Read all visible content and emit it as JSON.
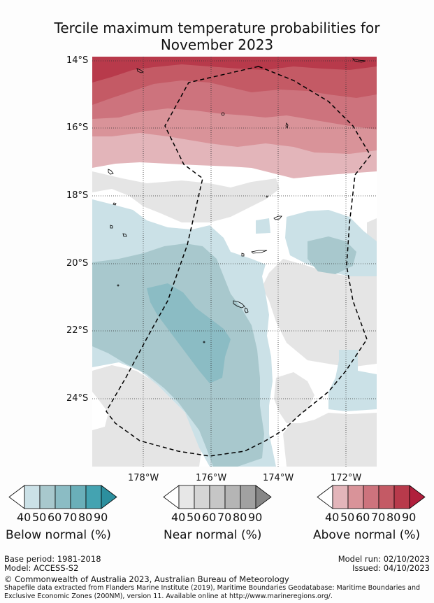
{
  "title_line1": "Tercile maximum temperature probabilities for",
  "title_line2": "November 2023",
  "axes": {
    "lat_labels": [
      "14°S",
      "16°S",
      "18°S",
      "20°S",
      "22°S",
      "24°S"
    ],
    "lon_labels": [
      "178°W",
      "176°W",
      "174°W",
      "172°W"
    ]
  },
  "legends": {
    "below": {
      "title": "Below normal (%)",
      "ticks": [
        "40",
        "50",
        "60",
        "70",
        "80",
        "90"
      ],
      "colors": [
        "#ffffff",
        "#cbe1e7",
        "#a8c8cd",
        "#8bbcc4",
        "#6aafb9",
        "#44a3b1",
        "#2c8f9e"
      ]
    },
    "near": {
      "title": "Near normal (%)",
      "ticks": [
        "40",
        "50",
        "60",
        "70",
        "80",
        "90"
      ],
      "colors": [
        "#ffffff",
        "#e7e7e7",
        "#d5d5d5",
        "#c6c6c6",
        "#b5b5b5",
        "#a1a1a1",
        "#868686"
      ]
    },
    "above": {
      "title": "Above normal (%)",
      "ticks": [
        "40",
        "50",
        "60",
        "70",
        "80",
        "90"
      ],
      "colors": [
        "#ffffff",
        "#e3b5ba",
        "#d99399",
        "#cd737d",
        "#c45a65",
        "#b83a4b",
        "#b01f3c"
      ]
    }
  },
  "footer": {
    "base_period": "Base period: 1981-2018",
    "model": "Model: ACCESS-S2",
    "model_run": "Model run: 02/10/2023",
    "issued": "Issued: 04/10/2023",
    "copyright": "© Commonwealth of Australia 2023, Australian Bureau of Meteorology",
    "shapefile_line1": "Shapefile data extracted from Flanders Marine Institute (2019), Maritime Boundaries Geodatabase: Maritime Boundaries and",
    "shapefile_line2": "Exclusive Economic Zones (200NM), version 11. Available online at http://www.marineregions.org/."
  }
}
